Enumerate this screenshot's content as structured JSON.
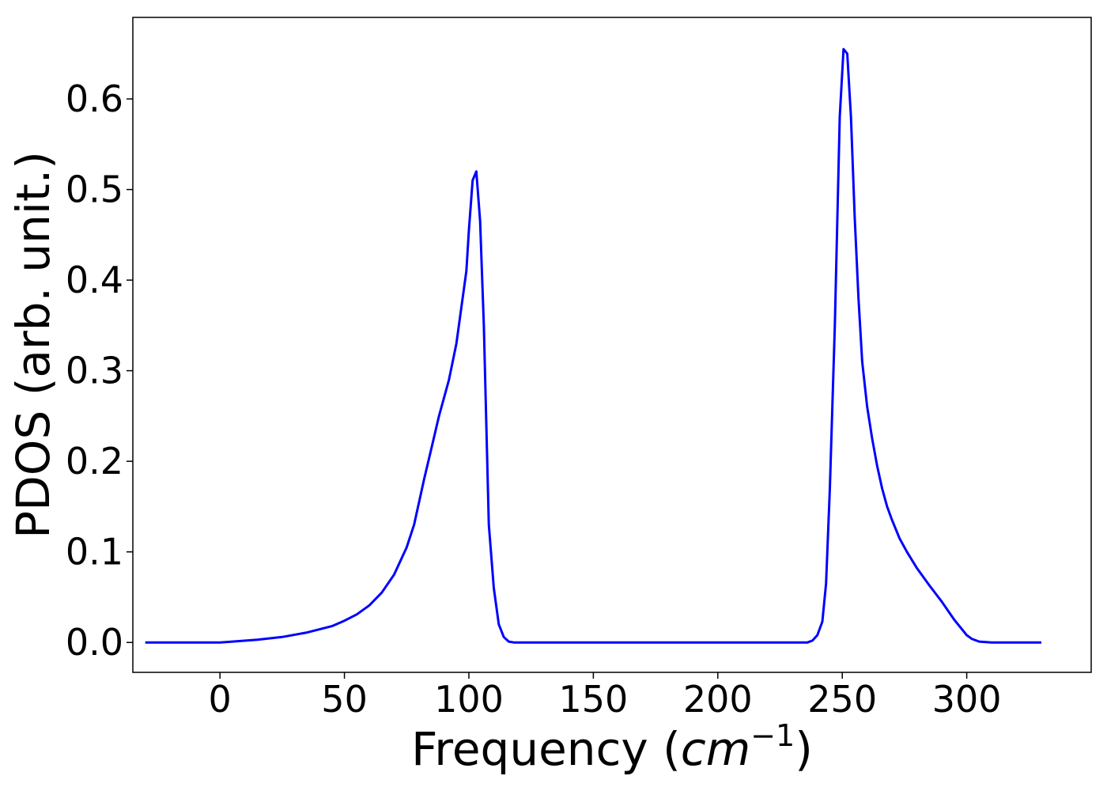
{
  "chart_data": {
    "type": "line",
    "title": "",
    "xlabel": "Frequency (",
    "xlabel_math": "cm",
    "xlabel_sup": "−1",
    "xlabel_end": ")",
    "ylabel": "PDOS (arb. unit.)",
    "xlim": [
      -35,
      350
    ],
    "ylim": [
      -0.033,
      0.69
    ],
    "xticks": [
      0,
      50,
      100,
      150,
      200,
      250,
      300
    ],
    "xtick_labels": [
      "0",
      "50",
      "100",
      "150",
      "200",
      "250",
      "300"
    ],
    "yticks": [
      0.0,
      0.1,
      0.2,
      0.3,
      0.4,
      0.5,
      0.6
    ],
    "ytick_labels": [
      "0.0",
      "0.1",
      "0.2",
      "0.3",
      "0.4",
      "0.5",
      "0.6"
    ],
    "grid": false,
    "series": [
      {
        "color": "#0000ff",
        "x": [
          -30,
          -10,
          0,
          5,
          15,
          25,
          35,
          45,
          50,
          55,
          60,
          65,
          70,
          75,
          78,
          80,
          82,
          85,
          88,
          92,
          95,
          97,
          99,
          100,
          101.5,
          103,
          104.5,
          106,
          108,
          110,
          112,
          114,
          116,
          118,
          120,
          130,
          200,
          236,
          238,
          240,
          242,
          243.5,
          245,
          247,
          249,
          250.5,
          252,
          253.5,
          255,
          256.5,
          258,
          260,
          262,
          264,
          266,
          268,
          270,
          273,
          276,
          280,
          285,
          290,
          295,
          300,
          302,
          305,
          310,
          330
        ],
        "y": [
          0.0,
          0.0,
          0.0,
          0.001,
          0.003,
          0.006,
          0.011,
          0.018,
          0.024,
          0.031,
          0.041,
          0.055,
          0.075,
          0.105,
          0.13,
          0.155,
          0.18,
          0.215,
          0.25,
          0.29,
          0.33,
          0.37,
          0.41,
          0.455,
          0.51,
          0.52,
          0.465,
          0.35,
          0.13,
          0.06,
          0.02,
          0.006,
          0.001,
          0.0,
          0.0,
          0.0,
          0.0,
          0.0,
          0.002,
          0.008,
          0.023,
          0.065,
          0.17,
          0.35,
          0.58,
          0.655,
          0.65,
          0.58,
          0.47,
          0.38,
          0.31,
          0.26,
          0.225,
          0.195,
          0.17,
          0.15,
          0.135,
          0.115,
          0.1,
          0.082,
          0.063,
          0.045,
          0.025,
          0.008,
          0.004,
          0.001,
          0.0,
          0.0
        ]
      }
    ]
  }
}
